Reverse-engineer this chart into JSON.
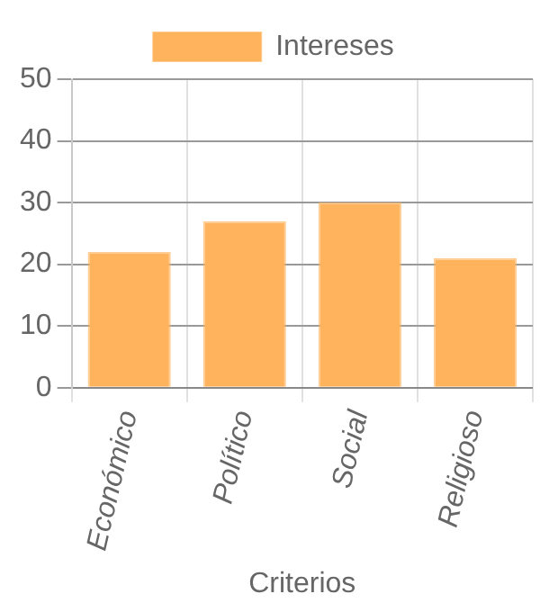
{
  "chart_data": {
    "type": "bar",
    "xlabel": "Criterios",
    "categories": [
      "Económico",
      "Político",
      "Social",
      "Religioso"
    ],
    "series": [
      {
        "name": "Intereses",
        "color": "#ffb35c",
        "values": [
          22,
          27,
          30,
          21
        ]
      }
    ],
    "ylim": [
      0,
      50
    ],
    "yticks": [
      0,
      10,
      20,
      30,
      40,
      50
    ],
    "grid": true,
    "legend": "top"
  }
}
